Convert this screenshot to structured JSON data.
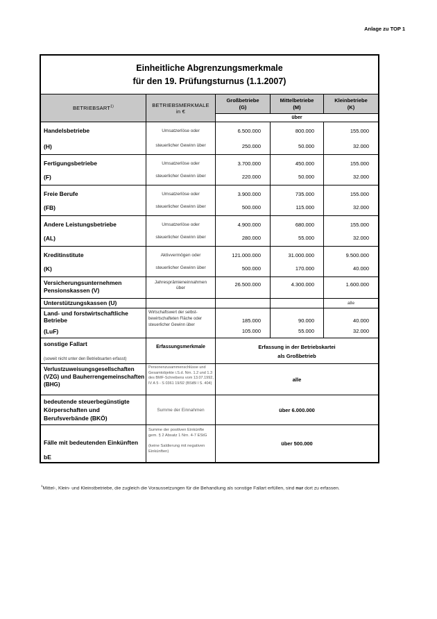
{
  "page": {
    "corner_label": "Anlage zu TOP 1"
  },
  "colors": {
    "header_bg": "#c8c8c8",
    "border": "#000000",
    "page_bg": "#ffffff"
  },
  "table": {
    "title": {
      "line1": "Einheitliche Abgrenzungsmerkmale",
      "line2": "für den 19. Prüfungsturnus (1.1.2007)"
    },
    "header": {
      "col1": "BETRIEBSART",
      "col1_sup": "1)",
      "col2_line1": "BETRIEBSMERKMALE",
      "col2_line2": "in €",
      "col3_line1": "Großbetriebe",
      "col3_line2": "(G)",
      "col4_line1": "Mittelbetriebe",
      "col4_line2": "(M)",
      "col5_line1": "Kleinbetriebe",
      "col5_line2": "(K)",
      "threshold_label": "über"
    },
    "standard_rows": [
      {
        "name": "Handelsbetriebe",
        "code": "(H)",
        "merkmal1": "Umsatzerlöse oder",
        "merkmal2": "steuerlicher Gewinn über",
        "g1": "6.500.000",
        "g2": "250.000",
        "m1": "800.000",
        "m2": "50.000",
        "k1": "155.000",
        "k2": "32.000"
      },
      {
        "name": "Fertigungsbetriebe",
        "code": "(F)",
        "merkmal1": "Umsatzerlöse oder",
        "merkmal2": "steuerlicher Gewinn über",
        "g1": "3.700.000",
        "g2": "220.000",
        "m1": "450.000",
        "m2": "50.000",
        "k1": "155.000",
        "k2": "32.000"
      },
      {
        "name": "Freie Berufe",
        "code": "(FB)",
        "merkmal1": "Umsatzerlöse oder",
        "merkmal2": "steuerlicher Gewinn über",
        "g1": "3.900.000",
        "g2": "500.000",
        "m1": "735.000",
        "m2": "115.000",
        "k1": "155.000",
        "k2": "32.000"
      },
      {
        "name": "Andere Leistungsbetriebe",
        "code": "(AL)",
        "merkmal1": "Umsatzerlöse oder",
        "merkmal2": "steuerlicher Gewinn über",
        "g1": "4.900.000",
        "g2": "280.000",
        "m1": "680.000",
        "m2": "55.000",
        "k1": "155.000",
        "k2": "32.000"
      },
      {
        "name": "Kreditinstitute",
        "code": "(K)",
        "merkmal1": "Aktivvermögen oder",
        "merkmal2": "steuerlicher Gewinn über",
        "g1": "121.000.000",
        "g2": "500.000",
        "m1": "31.000.000",
        "m2": "170.000",
        "k1": "9.500.000",
        "k2": "40.000"
      }
    ],
    "versicherung_row": {
      "name_line1": "Versicherungsunternehmen",
      "name_line2": "Pensionskassen (V)",
      "merkmal_line1": "Jahresprämieneinnahmen",
      "merkmal_line2": "über",
      "g": "26.500.000",
      "m": "4.300.000",
      "k": "1.600.000"
    },
    "unterstuetzungskassen_row": {
      "name": "Unterstützungskassen (U)",
      "k": "alle"
    },
    "luf_row": {
      "name_line1": "Land- und forstwirtschaftliche",
      "name_line2": "Betriebe",
      "code": "(LuF)",
      "merkmal": "Wirtschaftswert der selbst-bewirtschafteten Fläche oder steuerlicher Gewinn über",
      "g1": "185.000",
      "g2": "105.000",
      "m1": "90.000",
      "m2": "55.000",
      "k1": "40.000",
      "k2": "32.000"
    },
    "sonstige_row": {
      "name": "sonstige Fallart",
      "note": "(soweit nicht unter den Betriebsarten erfasst)",
      "merkmal": "Erfassungsmerkmale",
      "value_line1": "Erfassung in der Betriebskartei",
      "value_line2": "als Großbetrieb"
    },
    "vzg_row": {
      "name": "Verlustzuweisungsgesellschaften (VZG) und Bauherrengemeinschaften (BHG)",
      "merkmal": "Personenzusammenschlüsse und Gesamtobjekte i.S.d. Nrn. 1.2 und 1.3 des BMF-Schreibens vom 13.07.1992, IV A 5 - S 0361 19/92 (BStBl I S. 404)",
      "value": "alle"
    },
    "bko_row": {
      "name": "bedeutende steuerbegünstigte Körperschaften und Berufsverbände (BKÖ)",
      "merkmal": "Summe der Einnahmen",
      "value": "über 6.000.000"
    },
    "be_row": {
      "name": "Fälle mit bedeutenden Einkünften",
      "code": "bE",
      "merkmal_part1": "Summe der positiven Einkünfte gem. § 2 Absatz 1 Nrn. 4-7 EStG",
      "merkmal_part2": "(keine Saldierung mit negativen Einkünften)",
      "value": "über 500.000"
    }
  },
  "footnote": {
    "sup": "1",
    "before": "Mittel-, Klein- und Kleinstbetriebe, die zugleich die Voraussetzungen für die Behandlung als sonstige Fallart erfüllen, sind ",
    "emph": "nur",
    "after": " dort zu erfassen."
  }
}
